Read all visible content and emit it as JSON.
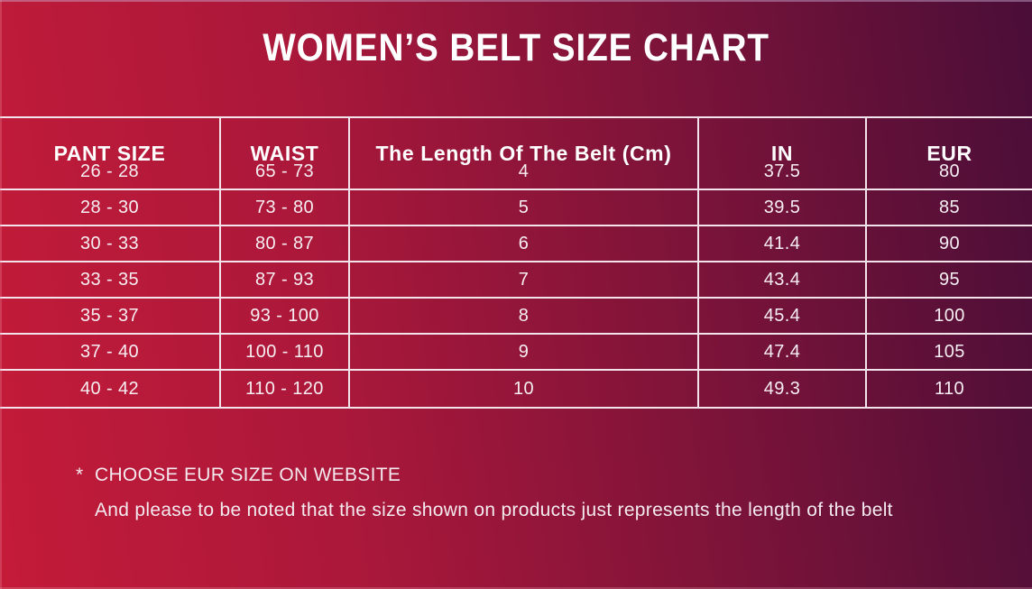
{
  "header": {
    "title": "WOMEN’S BELT SIZE CHART"
  },
  "chart_data": {
    "type": "table",
    "title": "WOMEN’S BELT SIZE CHART",
    "columns": [
      "PANT SIZE",
      "WAIST",
      "The Length Of The Belt (Cm)",
      "IN",
      "EUR"
    ],
    "rows": [
      [
        "26 - 28",
        "65 - 73",
        "4",
        "37.5",
        "80"
      ],
      [
        "28 - 30",
        "73 - 80",
        "5",
        "39.5",
        "85"
      ],
      [
        "30 - 33",
        "80 - 87",
        "6",
        "41.4",
        "90"
      ],
      [
        "33 - 35",
        "87 - 93",
        "7",
        "43.4",
        "95"
      ],
      [
        "35 - 37",
        "93 - 100",
        "8",
        "45.4",
        "100"
      ],
      [
        "37 - 40",
        "100 - 110",
        "9",
        "47.4",
        "105"
      ],
      [
        "40 - 42",
        "110 - 120",
        "10",
        "49.3",
        "110"
      ]
    ],
    "layout": {
      "grid": "full-width table, 5 columns, header row taller than data rows",
      "legend_position": "none"
    }
  },
  "footnotes": {
    "asterisk": "*",
    "line1": "CHOOSE EUR SIZE ON WEBSITE",
    "line2": "And please to be noted that the size shown on products just represents the length of the belt"
  },
  "colors": {
    "gradient_left": "#c41b39",
    "gradient_right_top": "#4a0e38",
    "gradient_right_bottom": "#5e1238",
    "table_border": "#f2e4ea",
    "text": "#ffffff"
  }
}
